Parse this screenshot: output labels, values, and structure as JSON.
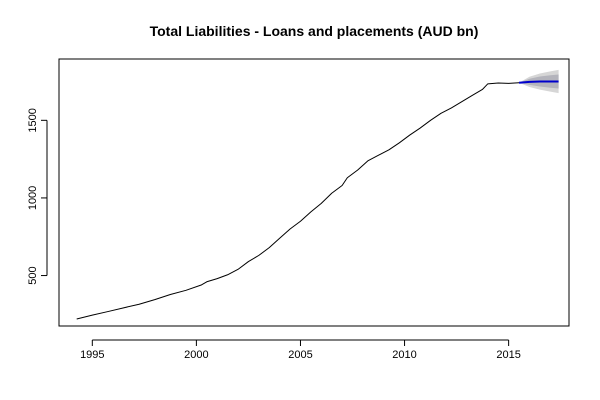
{
  "chart_data": {
    "type": "line",
    "title": "Total Liabilities - Loans and placements (AUD bn)",
    "xlabel": "",
    "ylabel": "",
    "xlim": [
      1993.4,
      2017.9
    ],
    "ylim": [
      175,
      1895
    ],
    "x_ticks": [
      1995,
      2000,
      2005,
      2010,
      2015
    ],
    "y_ticks": [
      500,
      1000,
      1500
    ],
    "grid": false,
    "legend": "none",
    "series": [
      {
        "style": "history",
        "color": "#000000",
        "x": [
          1994.25,
          1995.0,
          1995.75,
          1996.5,
          1997.25,
          1998.0,
          1998.75,
          1999.5,
          2000.25,
          2000.5,
          2001.0,
          2001.5,
          2002.0,
          2002.5,
          2003.0,
          2003.5,
          2004.0,
          2004.5,
          2005.0,
          2005.5,
          2006.0,
          2006.5,
          2007.0,
          2007.25,
          2007.75,
          2008.25,
          2008.75,
          2009.25,
          2009.75,
          2010.25,
          2010.75,
          2011.25,
          2011.75,
          2012.25,
          2012.75,
          2013.25,
          2013.75,
          2014.0,
          2014.5,
          2015.0,
          2015.5
        ],
        "y": [
          220,
          245,
          268,
          292,
          315,
          345,
          378,
          405,
          440,
          460,
          480,
          505,
          540,
          590,
          630,
          680,
          740,
          800,
          850,
          910,
          965,
          1030,
          1080,
          1130,
          1180,
          1240,
          1275,
          1310,
          1355,
          1405,
          1450,
          1500,
          1545,
          1580,
          1620,
          1660,
          1700,
          1735,
          1740,
          1738,
          1742
        ]
      },
      {
        "style": "forecast",
        "color": "#0000cc",
        "x": [
          2015.5,
          2016.0,
          2016.5,
          2017.0,
          2017.4
        ],
        "y": [
          1742,
          1748,
          1750,
          1750,
          1750
        ],
        "lower_80": [
          1742,
          1728,
          1718,
          1710,
          1705
        ],
        "upper_80": [
          1742,
          1768,
          1782,
          1790,
          1795
        ],
        "lower_95": [
          1742,
          1715,
          1698,
          1685,
          1675
        ],
        "upper_95": [
          1742,
          1781,
          1802,
          1815,
          1825
        ],
        "band_colors": [
          "#d6d6d6",
          "#b4b4bc"
        ]
      }
    ]
  }
}
